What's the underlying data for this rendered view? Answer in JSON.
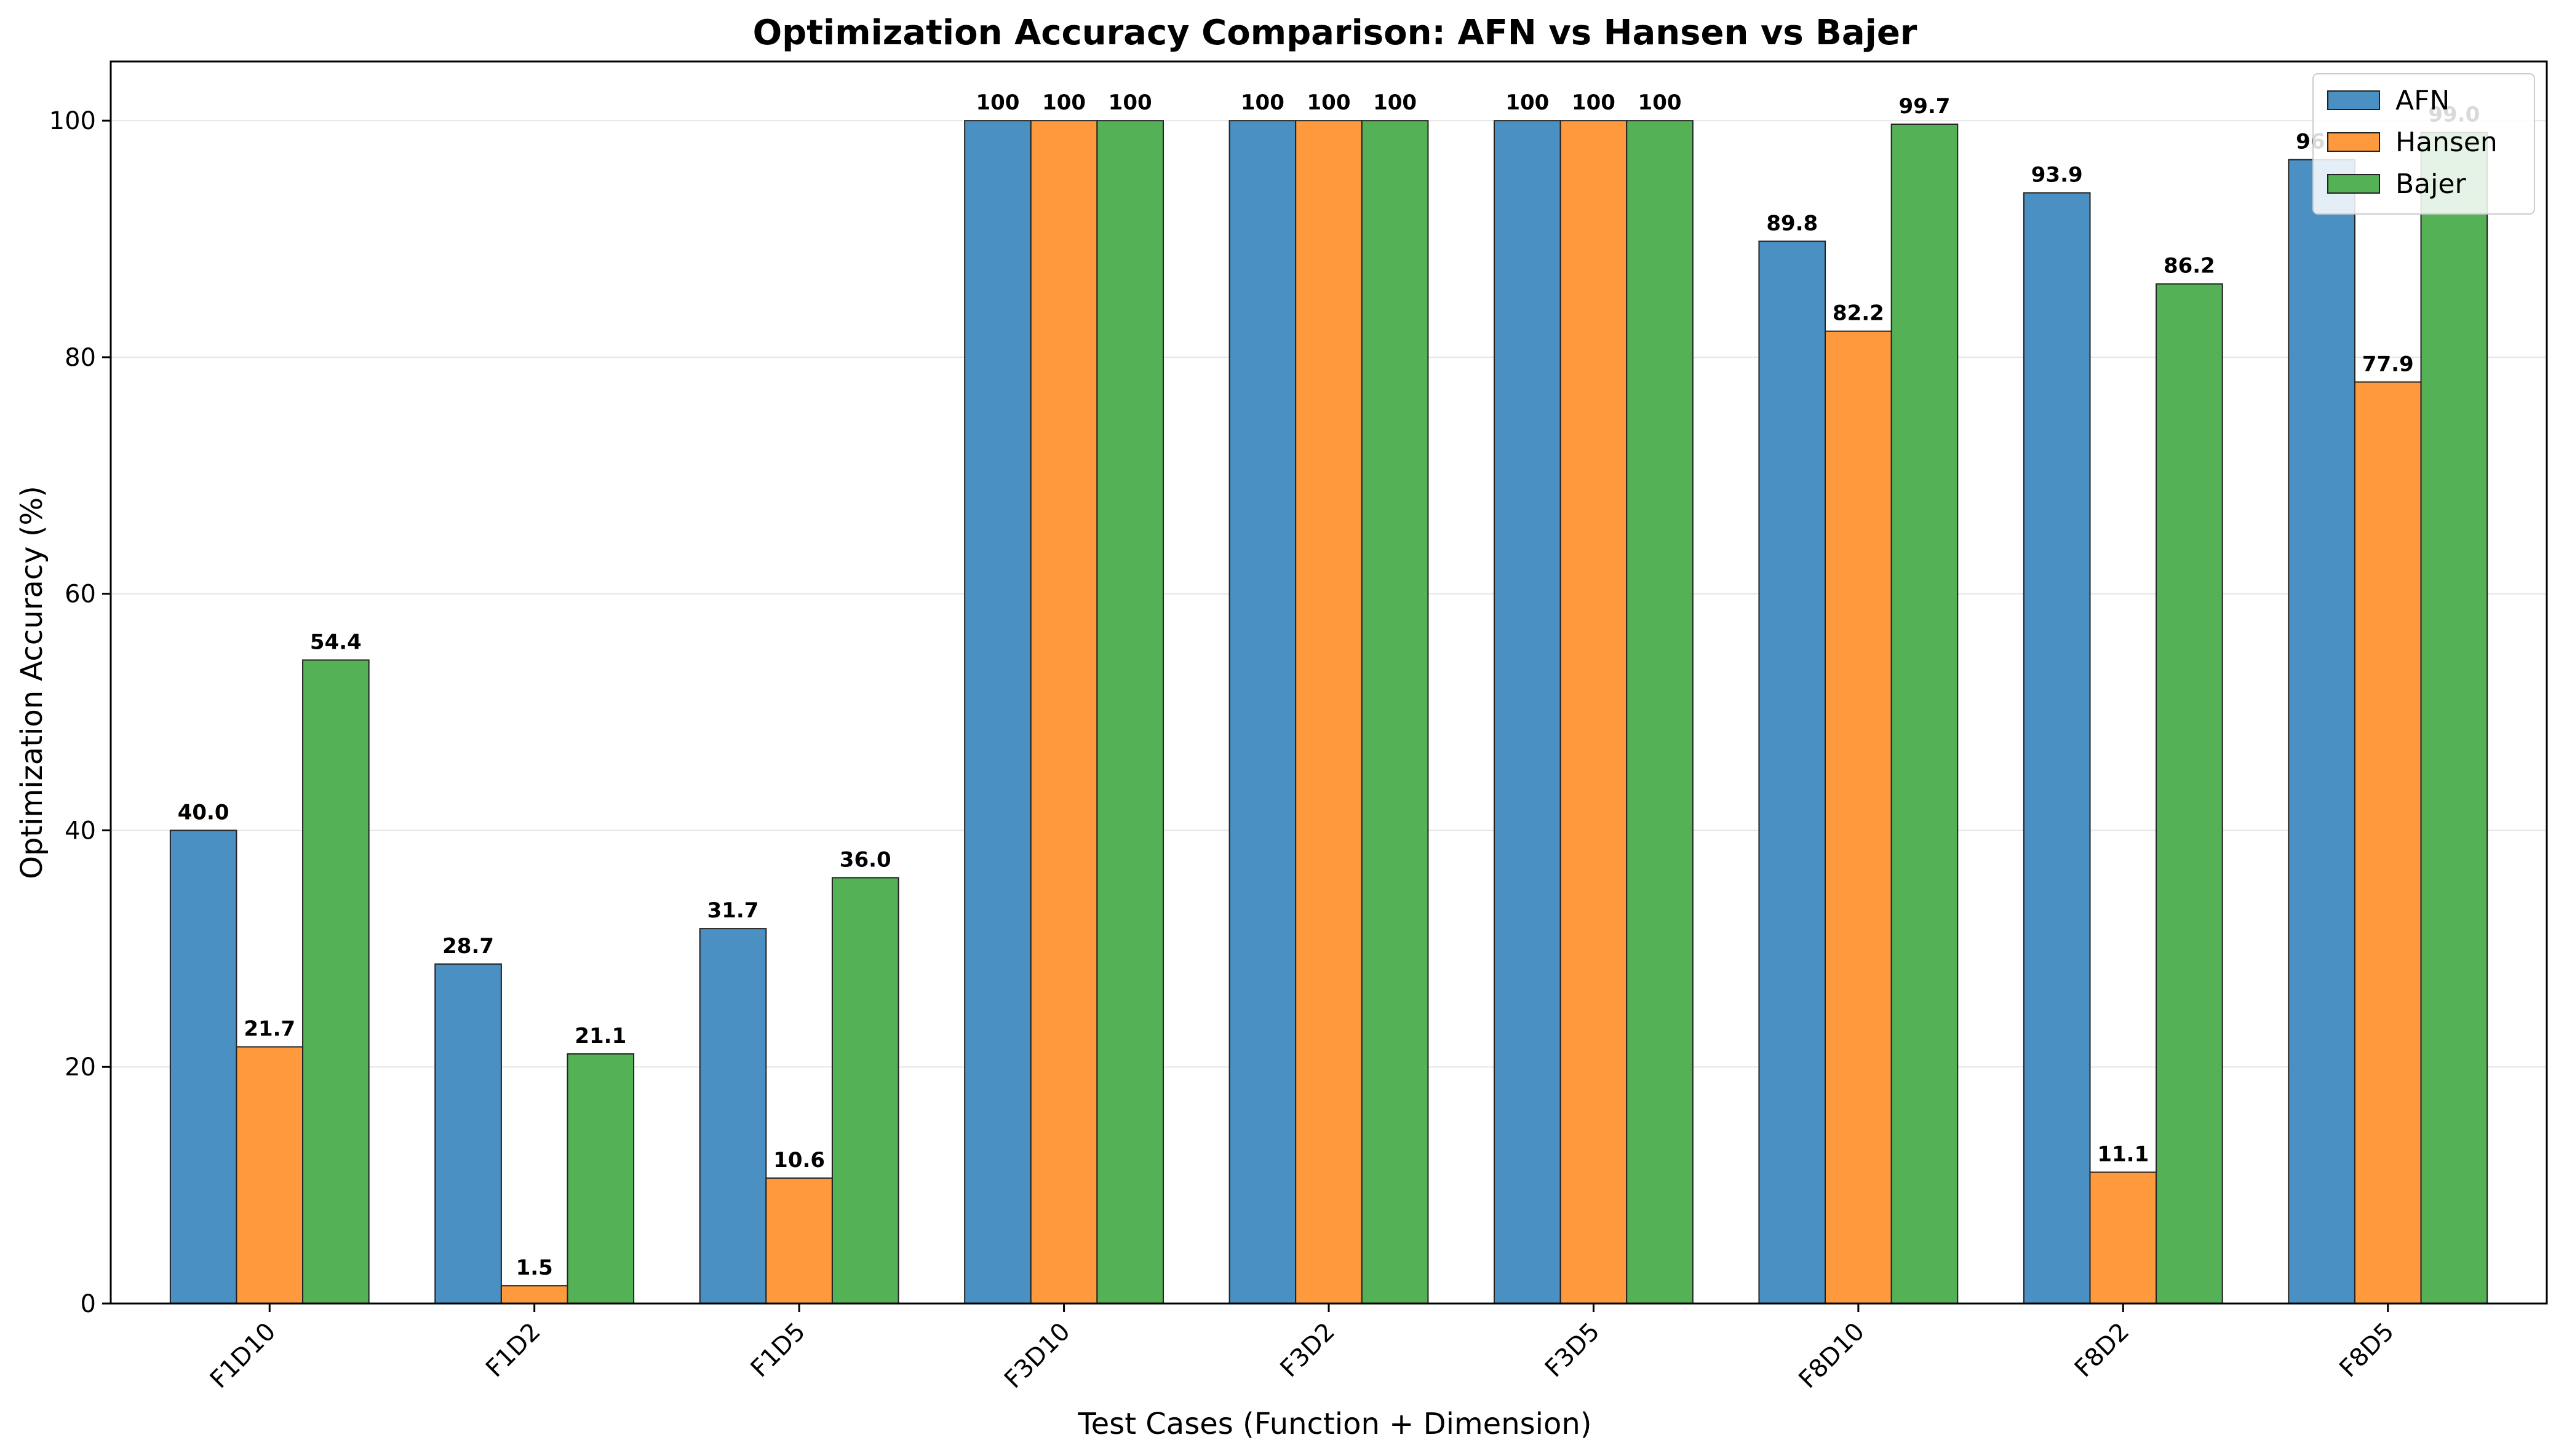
{
  "chart_data": {
    "type": "bar",
    "title": "Optimization Accuracy Comparison: AFN vs Hansen vs Bajer",
    "xlabel": "Test Cases (Function + Dimension)",
    "ylabel": "Optimization Accuracy (%)",
    "categories": [
      "F1D10",
      "F1D2",
      "F1D5",
      "F3D10",
      "F3D2",
      "F3D5",
      "F8D10",
      "F8D2",
      "F8D5"
    ],
    "series": [
      {
        "name": "AFN",
        "color": "#4a90c2",
        "values": [
          40.0,
          28.7,
          31.7,
          100,
          100,
          100,
          89.8,
          93.9,
          96.7
        ],
        "labels": [
          "40.0",
          "28.7",
          "31.7",
          "100",
          "100",
          "100",
          "89.8",
          "93.9",
          "96.7"
        ]
      },
      {
        "name": "Hansen",
        "color": "#fe9a3d",
        "values": [
          21.7,
          1.5,
          10.6,
          100,
          100,
          100,
          82.2,
          11.1,
          77.9
        ],
        "labels": [
          "21.7",
          "1.5",
          "10.6",
          "100",
          "100",
          "100",
          "82.2",
          "11.1",
          "77.9"
        ]
      },
      {
        "name": "Bajer",
        "color": "#55b156",
        "values": [
          54.4,
          21.1,
          36.0,
          100,
          100,
          100,
          99.7,
          86.2,
          99.0
        ],
        "labels": [
          "54.4",
          "21.1",
          "36.0",
          "100",
          "100",
          "100",
          "99.7",
          "86.2",
          "99.0"
        ]
      }
    ],
    "ylim": [
      0,
      105
    ],
    "yticks": [
      "0",
      "20",
      "40",
      "60",
      "80",
      "100"
    ],
    "grid": "horizontal",
    "legend": "top-right"
  }
}
